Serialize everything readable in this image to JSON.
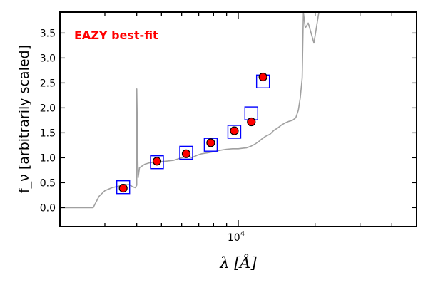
{
  "chart_data": {
    "type": "scatter",
    "title": "",
    "xlabel": "λ [Å]",
    "ylabel": "f_ν [arbitrarily scaled]",
    "xscale": "log",
    "xlim": [
      2000,
      50000
    ],
    "ylim": [
      -0.38,
      3.92
    ],
    "grid": false,
    "yticks": [
      0.0,
      0.5,
      1.0,
      1.5,
      2.0,
      2.5,
      3.0,
      3.5
    ],
    "ytick_labels": [
      "0.0",
      "0.5",
      "1.0",
      "1.5",
      "2.0",
      "2.5",
      "3.0",
      "3.5"
    ],
    "xticks_major": [
      10000
    ],
    "xtick_labels": [
      "10^4"
    ],
    "xticks_minor": [
      3000,
      4000,
      5000,
      6000,
      7000,
      8000,
      9000,
      20000,
      30000,
      40000
    ],
    "annotation": {
      "text": "EAZY best-fit",
      "color": "#ff0000"
    },
    "series": [
      {
        "kind": "model",
        "color": "#a0a0a0",
        "x": [
          2000,
          2500,
          2700,
          2850,
          3000,
          3200,
          3400,
          3600,
          3750,
          3850,
          3950,
          4000,
          4000,
          4050,
          4100,
          4300,
          4500,
          4800,
          5200,
          5600,
          6000,
          6200,
          6400,
          6560,
          6700,
          6900,
          7200,
          7600,
          8000,
          8500,
          9000,
          9500,
          10000,
          10400,
          10800,
          11200,
          11600,
          12000,
          12400,
          12800,
          13300,
          13800,
          14300,
          14800,
          15300,
          15800,
          16300,
          16800,
          17200,
          17500,
          17800,
          18000,
          18300,
          18800,
          19300,
          19800,
          20300,
          20700,
          21000
        ],
        "y": [
          0.0,
          0.0,
          0.0,
          0.23,
          0.34,
          0.4,
          0.43,
          0.46,
          0.46,
          0.42,
          0.4,
          0.45,
          2.38,
          0.6,
          0.8,
          0.87,
          0.9,
          0.92,
          0.93,
          0.95,
          1.0,
          1.02,
          1.04,
          1.0,
          1.02,
          1.05,
          1.08,
          1.1,
          1.12,
          1.15,
          1.17,
          1.18,
          1.18,
          1.19,
          1.2,
          1.23,
          1.27,
          1.32,
          1.38,
          1.43,
          1.47,
          1.55,
          1.6,
          1.66,
          1.7,
          1.73,
          1.75,
          1.8,
          1.95,
          2.2,
          2.6,
          3.92,
          3.6,
          3.7,
          3.5,
          3.3,
          3.65,
          3.92,
          3.92
        ]
      },
      {
        "kind": "model-photometry",
        "marker": "open-square",
        "color": "#0000ff",
        "x": [
          3540,
          4800,
          6250,
          7800,
          9650,
          11250,
          12500
        ],
        "y": [
          0.41,
          0.91,
          1.1,
          1.26,
          1.52,
          1.89,
          2.53
        ]
      },
      {
        "kind": "observed",
        "marker": "filled-circle",
        "color": "#ff0000",
        "edgecolor": "#000000",
        "x": [
          3540,
          4800,
          6250,
          7800,
          9650,
          11250,
          12500
        ],
        "y": [
          0.39,
          0.93,
          1.08,
          1.3,
          1.54,
          1.72,
          2.62
        ],
        "yerr": [
          0.07,
          0.04,
          0.04,
          0.05,
          0.07,
          0.07,
          0.05
        ]
      }
    ]
  }
}
